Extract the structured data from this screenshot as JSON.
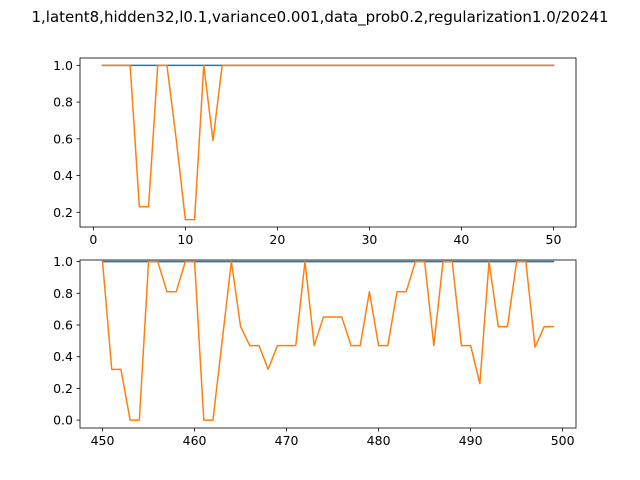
{
  "figure": {
    "title": "1,latent8,hidden32,l0.1,variance0.001,data_prob0.2,regularization1.0/20241"
  },
  "chart_data": [
    {
      "type": "line",
      "title": "",
      "xlabel": "",
      "ylabel": "",
      "xlim": [
        -1.45,
        52.45
      ],
      "ylim": [
        0.12,
        1.04
      ],
      "xticks": [
        0,
        10,
        20,
        30,
        40,
        50
      ],
      "yticks": [
        0.2,
        0.4,
        0.6,
        0.8,
        1.0
      ],
      "xtick_labels": [
        "0",
        "10",
        "20",
        "30",
        "40",
        "50"
      ],
      "ytick_labels": [
        "0.2",
        "0.4",
        "0.6",
        "0.8",
        "1.0"
      ],
      "grid": false,
      "series": [
        {
          "color": "#1f77b4",
          "x": [
            1,
            2,
            3,
            4,
            5,
            6,
            7,
            8,
            9,
            10,
            11,
            12,
            13,
            14,
            15,
            16,
            17,
            18,
            19,
            20,
            21,
            22,
            23,
            24,
            25,
            26,
            27,
            28,
            29,
            30,
            31,
            32,
            33,
            34,
            35,
            36,
            37,
            38,
            39,
            40,
            41,
            42,
            43,
            44,
            45,
            46,
            47,
            48,
            49,
            50
          ],
          "y": [
            1,
            1,
            1,
            1,
            1,
            1,
            1,
            1,
            1,
            1,
            1,
            1,
            1,
            1,
            1,
            1,
            1,
            1,
            1,
            1,
            1,
            1,
            1,
            1,
            1,
            1,
            1,
            1,
            1,
            1,
            1,
            1,
            1,
            1,
            1,
            1,
            1,
            1,
            1,
            1,
            1,
            1,
            1,
            1,
            1,
            1,
            1,
            1,
            1,
            1
          ]
        },
        {
          "color": "#ff7f0e",
          "x": [
            1,
            2,
            3,
            4,
            5,
            6,
            7,
            8,
            9,
            10,
            11,
            12,
            13,
            14,
            15,
            16,
            17,
            18,
            19,
            20,
            21,
            22,
            23,
            24,
            25,
            26,
            27,
            28,
            29,
            30,
            31,
            32,
            33,
            34,
            35,
            36,
            37,
            38,
            39,
            40,
            41,
            42,
            43,
            44,
            45,
            46,
            47,
            48,
            49,
            50
          ],
          "y": [
            1,
            1,
            1,
            1,
            0.23,
            0.23,
            1,
            1,
            0.6,
            0.16,
            0.16,
            1,
            0.59,
            1,
            1,
            1,
            1,
            1,
            1,
            1,
            1,
            1,
            1,
            1,
            1,
            1,
            1,
            1,
            1,
            1,
            1,
            1,
            1,
            1,
            1,
            1,
            1,
            1,
            1,
            1,
            1,
            1,
            1,
            1,
            1,
            1,
            1,
            1,
            1,
            1
          ]
        }
      ]
    },
    {
      "type": "line",
      "title": "",
      "xlabel": "",
      "ylabel": "",
      "xlim": [
        447.55,
        501.45
      ],
      "ylim": [
        -0.05,
        1.01
      ],
      "xticks": [
        450,
        460,
        470,
        480,
        490,
        500
      ],
      "yticks": [
        0.0,
        0.2,
        0.4,
        0.6,
        0.8,
        1.0
      ],
      "xtick_labels": [
        "450",
        "460",
        "470",
        "480",
        "490",
        "500"
      ],
      "ytick_labels": [
        "0.0",
        "0.2",
        "0.4",
        "0.6",
        "0.8",
        "1.0"
      ],
      "grid": false,
      "series": [
        {
          "color": "#1f77b4",
          "x": [
            450,
            451,
            452,
            453,
            454,
            455,
            456,
            457,
            458,
            459,
            460,
            461,
            462,
            463,
            464,
            465,
            466,
            467,
            468,
            469,
            470,
            471,
            472,
            473,
            474,
            475,
            476,
            477,
            478,
            479,
            480,
            481,
            482,
            483,
            484,
            485,
            486,
            487,
            488,
            489,
            490,
            491,
            492,
            493,
            494,
            495,
            496,
            497,
            498,
            499
          ],
          "y": [
            1,
            1,
            1,
            1,
            1,
            1,
            1,
            1,
            1,
            1,
            1,
            1,
            1,
            1,
            1,
            1,
            1,
            1,
            1,
            1,
            1,
            1,
            1,
            1,
            1,
            1,
            1,
            1,
            1,
            1,
            1,
            1,
            1,
            1,
            1,
            1,
            1,
            1,
            1,
            1,
            1,
            1,
            1,
            1,
            1,
            1,
            1,
            1,
            1,
            1
          ]
        },
        {
          "color": "#ff7f0e",
          "x": [
            450,
            451,
            452,
            453,
            454,
            455,
            456,
            457,
            458,
            459,
            460,
            461,
            462,
            463,
            464,
            465,
            466,
            467,
            468,
            469,
            470,
            471,
            472,
            473,
            474,
            475,
            476,
            477,
            478,
            479,
            480,
            481,
            482,
            483,
            484,
            485,
            486,
            487,
            488,
            489,
            490,
            491,
            492,
            493,
            494,
            495,
            496,
            497,
            498,
            499
          ],
          "y": [
            1,
            0.32,
            0.32,
            0,
            0,
            1,
            1,
            0.81,
            0.81,
            1,
            1,
            0,
            0,
            0.5,
            1,
            0.59,
            0.47,
            0.47,
            0.32,
            0.47,
            0.47,
            0.47,
            1,
            0.47,
            0.65,
            0.65,
            0.65,
            0.47,
            0.47,
            0.81,
            0.47,
            0.47,
            0.81,
            0.81,
            1,
            1,
            0.47,
            1,
            1,
            0.47,
            0.47,
            0.23,
            1,
            0.59,
            0.59,
            1,
            1,
            0.46,
            0.59,
            0.59
          ]
        }
      ]
    }
  ]
}
